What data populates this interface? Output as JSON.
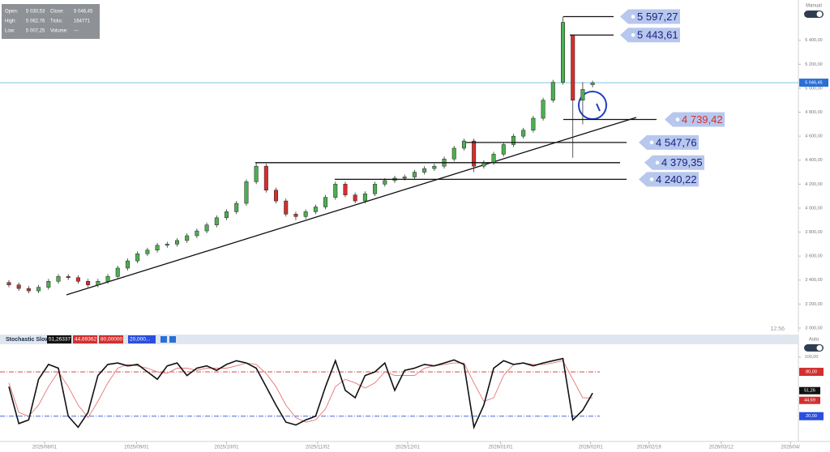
{
  "chart_data": [
    {
      "type": "candlestick",
      "series": {
        "open": [
          3380,
          3360,
          3330,
          3310,
          3340,
          3390,
          3430,
          3420,
          3390,
          3360,
          3390,
          3430,
          3500,
          3560,
          3620,
          3650,
          3690,
          3700,
          3730,
          3770,
          3810,
          3860,
          3920,
          3970,
          4040,
          4220,
          4350,
          4150,
          4060,
          3950,
          3930,
          3970,
          4010,
          4090,
          4200,
          4110,
          4060,
          4120,
          4200,
          4230,
          4250,
          4260,
          4300,
          4330,
          4350,
          4410,
          4500,
          4560,
          4350,
          4380,
          4450,
          4530,
          4600,
          4650,
          4750,
          4900,
          5050,
          5443,
          4900,
          5030
        ],
        "high": [
          3400,
          3380,
          3350,
          3360,
          3410,
          3450,
          3450,
          3440,
          3410,
          3410,
          3450,
          3520,
          3580,
          3640,
          3670,
          3710,
          3720,
          3750,
          3790,
          3830,
          3880,
          3940,
          3990,
          4060,
          4240,
          4380,
          4370,
          4170,
          4080,
          3970,
          3990,
          4030,
          4110,
          4220,
          4220,
          4130,
          4140,
          4220,
          4250,
          4270,
          4280,
          4320,
          4350,
          4370,
          4430,
          4520,
          4580,
          4580,
          4400,
          4470,
          4550,
          4620,
          4670,
          4770,
          4920,
          5070,
          5597,
          5443,
          5050,
          5063
        ],
        "low": [
          3340,
          3310,
          3290,
          3290,
          3320,
          3370,
          3400,
          3370,
          3340,
          3340,
          3370,
          3410,
          3480,
          3540,
          3600,
          3630,
          3670,
          3680,
          3710,
          3750,
          3790,
          3840,
          3900,
          3950,
          4020,
          4200,
          4130,
          4040,
          3930,
          3900,
          3910,
          3950,
          3990,
          4070,
          4090,
          4040,
          4040,
          4100,
          4180,
          4210,
          4230,
          4240,
          4280,
          4310,
          4330,
          4390,
          4480,
          4300,
          4330,
          4360,
          4430,
          4510,
          4580,
          4630,
          4730,
          4880,
          5030,
          4420,
          4700,
          5007
        ],
        "close": [
          3360,
          3330,
          3310,
          3340,
          3390,
          3430,
          3420,
          3390,
          3360,
          3390,
          3430,
          3500,
          3560,
          3620,
          3650,
          3690,
          3700,
          3730,
          3770,
          3810,
          3860,
          3920,
          3970,
          4040,
          4220,
          4350,
          4150,
          4060,
          3950,
          3930,
          3970,
          4010,
          4090,
          4200,
          4110,
          4060,
          4120,
          4200,
          4230,
          4250,
          4260,
          4300,
          4330,
          4350,
          4410,
          4500,
          4560,
          4350,
          4380,
          4450,
          4530,
          4600,
          4650,
          4750,
          4900,
          5050,
          5550,
          4900,
          4990,
          5046
        ]
      },
      "up_color": "#4caf50",
      "down_color": "#d32f2f",
      "xlim": [
        -0.9,
        79.8
      ],
      "ylim": [
        2966,
        5736
      ],
      "yticks": [
        {
          "value": 3000,
          "label": "3 000,00"
        },
        {
          "value": 3200,
          "label": "3 200,00"
        },
        {
          "value": 3400,
          "label": "3 400,00"
        },
        {
          "value": 3600,
          "label": "3 600,00"
        },
        {
          "value": 3800,
          "label": "3 800,00"
        },
        {
          "value": 4000,
          "label": "4 000,00"
        },
        {
          "value": 4200,
          "label": "4 200,00"
        },
        {
          "value": 4400,
          "label": "4 400,00"
        },
        {
          "value": 4600,
          "label": "4 600,00"
        },
        {
          "value": 4800,
          "label": "4 800,00"
        },
        {
          "value": 5000,
          "label": "5 000,00"
        },
        {
          "value": 5200,
          "label": "5 200,00"
        },
        {
          "value": 5400,
          "label": "5 400,00"
        }
      ],
      "last_price": {
        "value": 5046.45,
        "label": "5 046,45"
      },
      "levels": [
        {
          "value": 5597.27,
          "label": "5 597,27",
          "text_color": "#1a237e"
        },
        {
          "value": 5443.61,
          "label": "5 443,61",
          "text_color": "#1a237e"
        },
        {
          "value": 4739.42,
          "label": "4 739,42",
          "text_color": "#d32f2f"
        },
        {
          "value": 4547.76,
          "label": "4 547,76",
          "text_color": "#1a237e"
        },
        {
          "value": 4379.35,
          "label": "4 379,35",
          "text_color": "#1a237e"
        },
        {
          "value": 4240.22,
          "label": "4 240,22",
          "text_color": "#1a237e"
        }
      ]
    },
    {
      "type": "line",
      "title": "Stochastic Slow",
      "header_values": [
        "51,26337",
        "44,69362",
        "80,00000",
        "20,000..."
      ],
      "series": [
        {
          "color": "#111111",
          "values": [
            60,
            10,
            15,
            70,
            90,
            85,
            20,
            5,
            25,
            75,
            90,
            92,
            88,
            90,
            80,
            70,
            88,
            92,
            75,
            85,
            88,
            82,
            90,
            95,
            92,
            85,
            60,
            35,
            12,
            8,
            15,
            20,
            60,
            95,
            55,
            45,
            75,
            80,
            92,
            55,
            82,
            85,
            90,
            88,
            92,
            96,
            90,
            5,
            35,
            85,
            95,
            90,
            92,
            88,
            92,
            95,
            98,
            15,
            28,
            51.26337
          ],
          "last_label": "51,26"
        },
        {
          "color": "#e57373",
          "values": [
            65,
            25,
            20,
            35,
            60,
            80,
            60,
            35,
            18,
            40,
            65,
            85,
            90,
            88,
            85,
            80,
            78,
            85,
            85,
            82,
            85,
            85,
            85,
            88,
            92,
            90,
            78,
            60,
            35,
            18,
            12,
            15,
            30,
            60,
            70,
            65,
            58,
            65,
            80,
            75,
            75,
            75,
            85,
            88,
            90,
            92,
            92,
            65,
            40,
            45,
            75,
            90,
            92,
            90,
            90,
            92,
            95,
            70,
            45,
            44.69362
          ],
          "last_label": "44,69"
        }
      ],
      "xlim": [
        -0.9,
        79.8
      ],
      "ylim": [
        -14.2,
        117.3
      ],
      "yticks": [
        {
          "value": 100,
          "label": "100,00"
        },
        {
          "value": 80,
          "label": "80,00"
        },
        {
          "value": 20,
          "label": "20,00"
        }
      ],
      "xticks": [
        {
          "value": 3.6,
          "label": "2025/08/01"
        },
        {
          "value": 12.9,
          "label": "2025/09/01"
        },
        {
          "value": 22,
          "label": "2025/10/01"
        },
        {
          "value": 31.2,
          "label": "2025/11/02"
        },
        {
          "value": 40.3,
          "label": "2025/12/01"
        },
        {
          "value": 49.7,
          "label": "2026/01/01"
        },
        {
          "value": 58.8,
          "label": "2026/02/01"
        },
        {
          "value": 64.7,
          "label": "2026/02/19"
        },
        {
          "value": 72,
          "label": "2026/03/12"
        },
        {
          "value": 79,
          "label": "2026/04/"
        }
      ]
    }
  ],
  "info_panel": {
    "rows": [
      [
        "Open:",
        "5 030,53",
        "Close:",
        "5 046,45"
      ],
      [
        "High:",
        "5 062,76",
        "Ticks:",
        "164771"
      ],
      [
        "Low:",
        "5 007,25",
        "Volume:",
        "---"
      ]
    ]
  },
  "ui": {
    "price_mode": "Manual",
    "time": "12:56",
    "indicator_mode": "Auto"
  }
}
